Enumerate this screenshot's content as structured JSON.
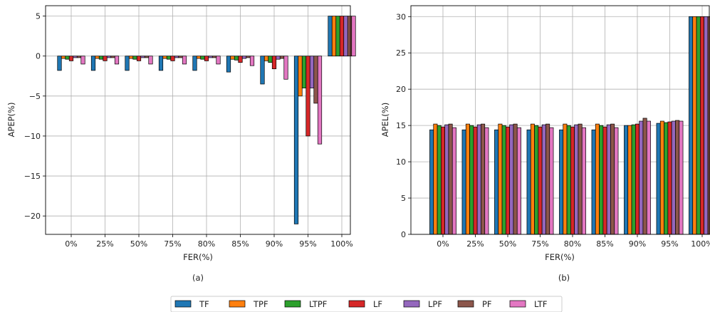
{
  "colors": {
    "TF": "#1f77b4",
    "TPF": "#ff7f0e",
    "LTPF": "#2ca02c",
    "LF": "#d62728",
    "LPF": "#9467bd",
    "PF": "#8c564b",
    "LTF": "#e377c2",
    "grid": "#b0b0b0",
    "axis": "#000000"
  },
  "legend": {
    "entries": [
      "TF",
      "TPF",
      "LTPF",
      "LF",
      "LPF",
      "PF",
      "LTF"
    ],
    "placement": "bottom-center"
  },
  "chart_data": [
    {
      "type": "bar",
      "caption": "(a)",
      "xlabel": "FER(%)",
      "ylabel": "APEP(%)",
      "ylim": [
        -22.3,
        6.3
      ],
      "yticks": [
        -20,
        -15,
        -10,
        -5,
        0,
        5
      ],
      "ytick_labels": [
        "−20",
        "−15",
        "−10",
        "−5",
        "0",
        "5"
      ],
      "grid": true,
      "categories": [
        "0%",
        "25%",
        "50%",
        "75%",
        "80%",
        "85%",
        "90%",
        "95%",
        "100%"
      ],
      "series": [
        {
          "name": "TF",
          "values": [
            -1.8,
            -1.8,
            -1.8,
            -1.8,
            -1.8,
            -2.0,
            -3.5,
            -21.0,
            5.0
          ]
        },
        {
          "name": "TPF",
          "values": [
            -0.3,
            -0.3,
            -0.3,
            -0.3,
            -0.3,
            -0.4,
            -0.6,
            -5.0,
            5.0
          ]
        },
        {
          "name": "LTPF",
          "values": [
            -0.4,
            -0.4,
            -0.4,
            -0.4,
            -0.4,
            -0.5,
            -0.8,
            -4.0,
            5.0
          ]
        },
        {
          "name": "LF",
          "values": [
            -0.6,
            -0.6,
            -0.6,
            -0.6,
            -0.6,
            -0.8,
            -1.6,
            -10.0,
            5.0
          ]
        },
        {
          "name": "LPF",
          "values": [
            -0.2,
            -0.2,
            -0.2,
            -0.2,
            -0.2,
            -0.3,
            -0.4,
            -4.0,
            5.0
          ]
        },
        {
          "name": "PF",
          "values": [
            -0.2,
            -0.2,
            -0.2,
            -0.2,
            -0.2,
            -0.2,
            -0.3,
            -5.9,
            5.0
          ]
        },
        {
          "name": "LTF",
          "values": [
            -1.0,
            -1.0,
            -1.0,
            -1.0,
            -1.0,
            -1.2,
            -2.9,
            -11.0,
            5.0
          ]
        }
      ]
    },
    {
      "type": "bar",
      "caption": "(b)",
      "xlabel": "FER(%)",
      "ylabel": "APEL(%)",
      "ylim": [
        0,
        31.5
      ],
      "yticks": [
        0,
        5,
        10,
        15,
        20,
        25,
        30
      ],
      "ytick_labels": [
        "0",
        "5",
        "10",
        "15",
        "20",
        "25",
        "30"
      ],
      "grid": true,
      "categories": [
        "0%",
        "25%",
        "50%",
        "75%",
        "80%",
        "85%",
        "90%",
        "95%",
        "100%"
      ],
      "series": [
        {
          "name": "TF",
          "values": [
            14.4,
            14.4,
            14.4,
            14.4,
            14.4,
            14.4,
            15.0,
            15.3,
            30.0
          ]
        },
        {
          "name": "TPF",
          "values": [
            15.2,
            15.2,
            15.2,
            15.2,
            15.2,
            15.2,
            15.0,
            15.6,
            30.0
          ]
        },
        {
          "name": "LTPF",
          "values": [
            15.0,
            15.0,
            15.0,
            15.0,
            15.0,
            15.0,
            15.1,
            15.4,
            30.0
          ]
        },
        {
          "name": "LF",
          "values": [
            14.8,
            14.8,
            14.8,
            14.8,
            14.8,
            14.8,
            15.2,
            15.5,
            30.0
          ]
        },
        {
          "name": "LPF",
          "values": [
            15.1,
            15.1,
            15.1,
            15.1,
            15.1,
            15.1,
            15.6,
            15.6,
            30.0
          ]
        },
        {
          "name": "PF",
          "values": [
            15.2,
            15.2,
            15.2,
            15.2,
            15.2,
            15.2,
            16.0,
            15.7,
            30.0
          ]
        },
        {
          "name": "LTF",
          "values": [
            14.7,
            14.7,
            14.7,
            14.7,
            14.7,
            14.7,
            15.6,
            15.6,
            30.0
          ]
        }
      ]
    }
  ]
}
